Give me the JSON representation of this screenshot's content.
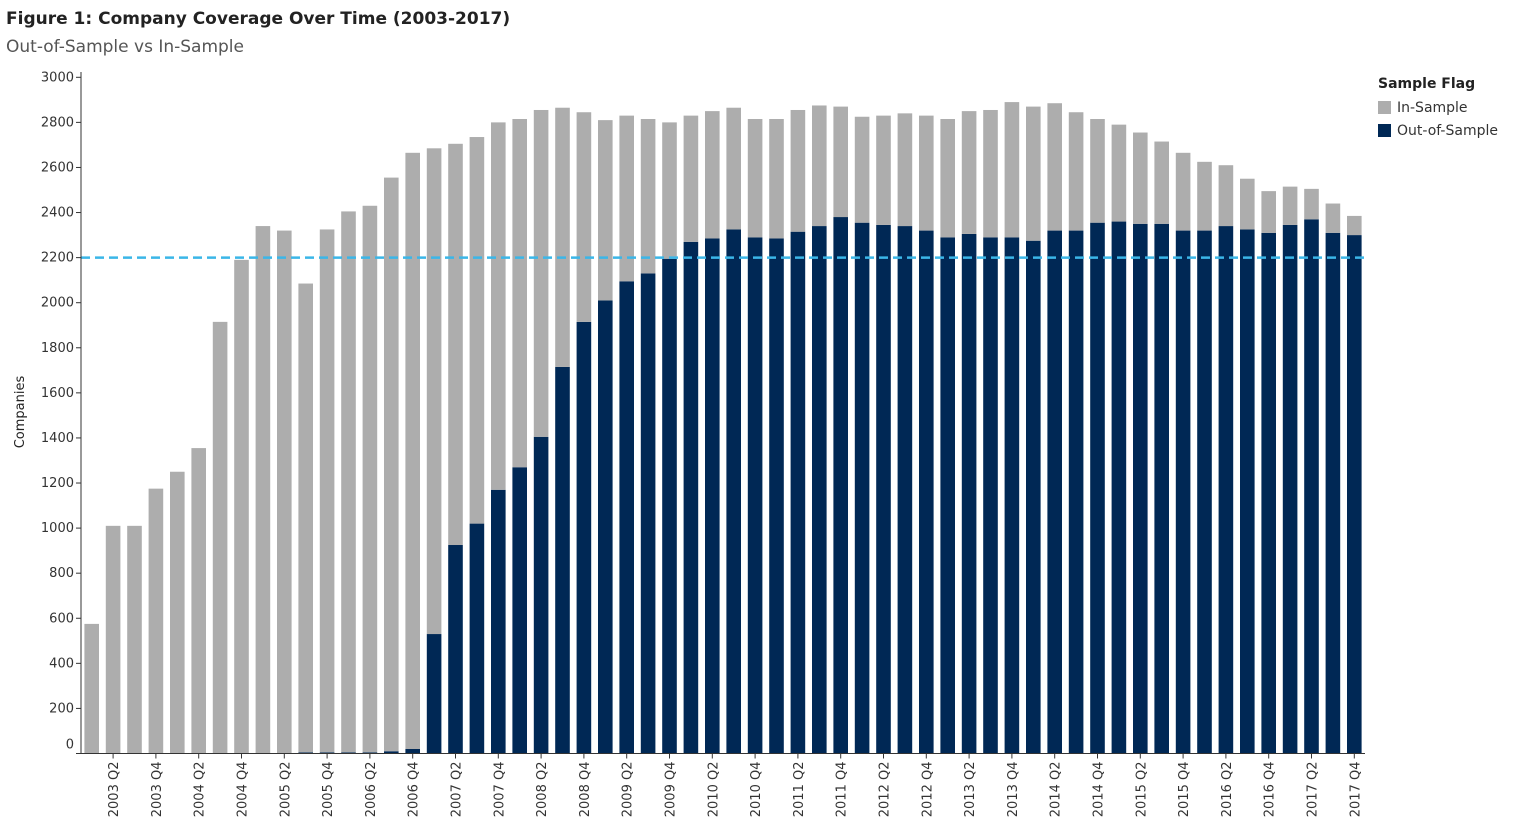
{
  "header": {
    "title": "Figure 1: Company Coverage Over Time (2003-2017)",
    "subtitle": "Out-of-Sample vs In-Sample"
  },
  "legend": {
    "title": "Sample Flag",
    "items": [
      {
        "label": "In-Sample",
        "color": "#adadad"
      },
      {
        "label": "Out-of-Sample",
        "color": "#002855"
      }
    ]
  },
  "reference_line": {
    "value": 2200,
    "color": "#3bb6e8"
  },
  "chart_data": {
    "type": "bar",
    "stacked": true,
    "title": "Figure 1: Company Coverage Over Time (2003-2017)",
    "subtitle": "Out-of-Sample vs In-Sample",
    "xlabel": "",
    "ylabel": "Companies",
    "ylim": [
      0,
      3000
    ],
    "yticks": [
      0,
      200,
      400,
      600,
      800,
      1000,
      1200,
      1400,
      1600,
      1800,
      2000,
      2200,
      2400,
      2600,
      2800,
      3000
    ],
    "grid": false,
    "legend_position": "top-right",
    "categories": [
      "2003 Q1",
      "2003 Q2",
      "2003 Q3",
      "2003 Q4",
      "2004 Q1",
      "2004 Q2",
      "2004 Q3",
      "2004 Q4",
      "2005 Q1",
      "2005 Q2",
      "2005 Q3",
      "2005 Q4",
      "2006 Q1",
      "2006 Q2",
      "2006 Q3",
      "2006 Q4",
      "2007 Q1",
      "2007 Q2",
      "2007 Q3",
      "2007 Q4",
      "2008 Q1",
      "2008 Q2",
      "2008 Q3",
      "2008 Q4",
      "2009 Q1",
      "2009 Q2",
      "2009 Q3",
      "2009 Q4",
      "2010 Q1",
      "2010 Q2",
      "2010 Q3",
      "2010 Q4",
      "2011 Q1",
      "2011 Q2",
      "2011 Q3",
      "2011 Q4",
      "2012 Q1",
      "2012 Q2",
      "2012 Q3",
      "2012 Q4",
      "2013 Q1",
      "2013 Q2",
      "2013 Q3",
      "2013 Q4",
      "2014 Q1",
      "2014 Q2",
      "2014 Q3",
      "2014 Q4",
      "2015 Q1",
      "2015 Q2",
      "2015 Q3",
      "2015 Q4",
      "2016 Q1",
      "2016 Q2",
      "2016 Q3",
      "2016 Q4",
      "2017 Q1",
      "2017 Q2",
      "2017 Q3",
      "2017 Q4"
    ],
    "tick_labels": [
      "2003 Q2",
      "2003 Q4",
      "2004 Q2",
      "2004 Q4",
      "2005 Q2",
      "2005 Q4",
      "2006 Q2",
      "2006 Q4",
      "2007 Q2",
      "2007 Q4",
      "2008 Q2",
      "2008 Q4",
      "2009 Q2",
      "2009 Q4",
      "2010 Q2",
      "2010 Q4",
      "2011 Q2",
      "2011 Q4",
      "2012 Q2",
      "2012 Q4",
      "2013 Q2",
      "2013 Q4",
      "2014 Q2",
      "2014 Q4",
      "2015 Q2",
      "2015 Q4",
      "2016 Q2",
      "2016 Q4",
      "2017 Q2",
      "2017 Q4"
    ],
    "series": [
      {
        "name": "Out-of-Sample",
        "color": "#002855",
        "values": [
          0,
          0,
          0,
          0,
          0,
          0,
          0,
          0,
          0,
          0,
          5,
          5,
          5,
          5,
          10,
          20,
          530,
          925,
          1020,
          1170,
          1270,
          1405,
          1715,
          1915,
          2010,
          2095,
          2130,
          2195,
          2270,
          2285,
          2325,
          2290,
          2285,
          2315,
          2340,
          2380,
          2355,
          2345,
          2340,
          2320,
          2290,
          2305,
          2290,
          2290,
          2275,
          2320,
          2320,
          2355,
          2360,
          2350,
          2350,
          2320,
          2320,
          2340,
          2325,
          2310,
          2345,
          2370,
          2310,
          2300
        ]
      },
      {
        "name": "In-Sample",
        "color": "#adadad",
        "values": [
          575,
          1010,
          1010,
          1175,
          1250,
          1355,
          1915,
          2190,
          2340,
          2320,
          2080,
          2320,
          2400,
          2425,
          2545,
          2645,
          2155,
          1780,
          1715,
          1630,
          1545,
          1450,
          1150,
          930,
          800,
          735,
          685,
          605,
          560,
          565,
          540,
          525,
          530,
          540,
          535,
          490,
          470,
          485,
          500,
          510,
          525,
          545,
          565,
          600,
          595,
          565,
          525,
          460,
          430,
          405,
          365,
          345,
          305,
          270,
          225,
          185,
          170,
          135,
          130,
          85
        ]
      }
    ]
  }
}
